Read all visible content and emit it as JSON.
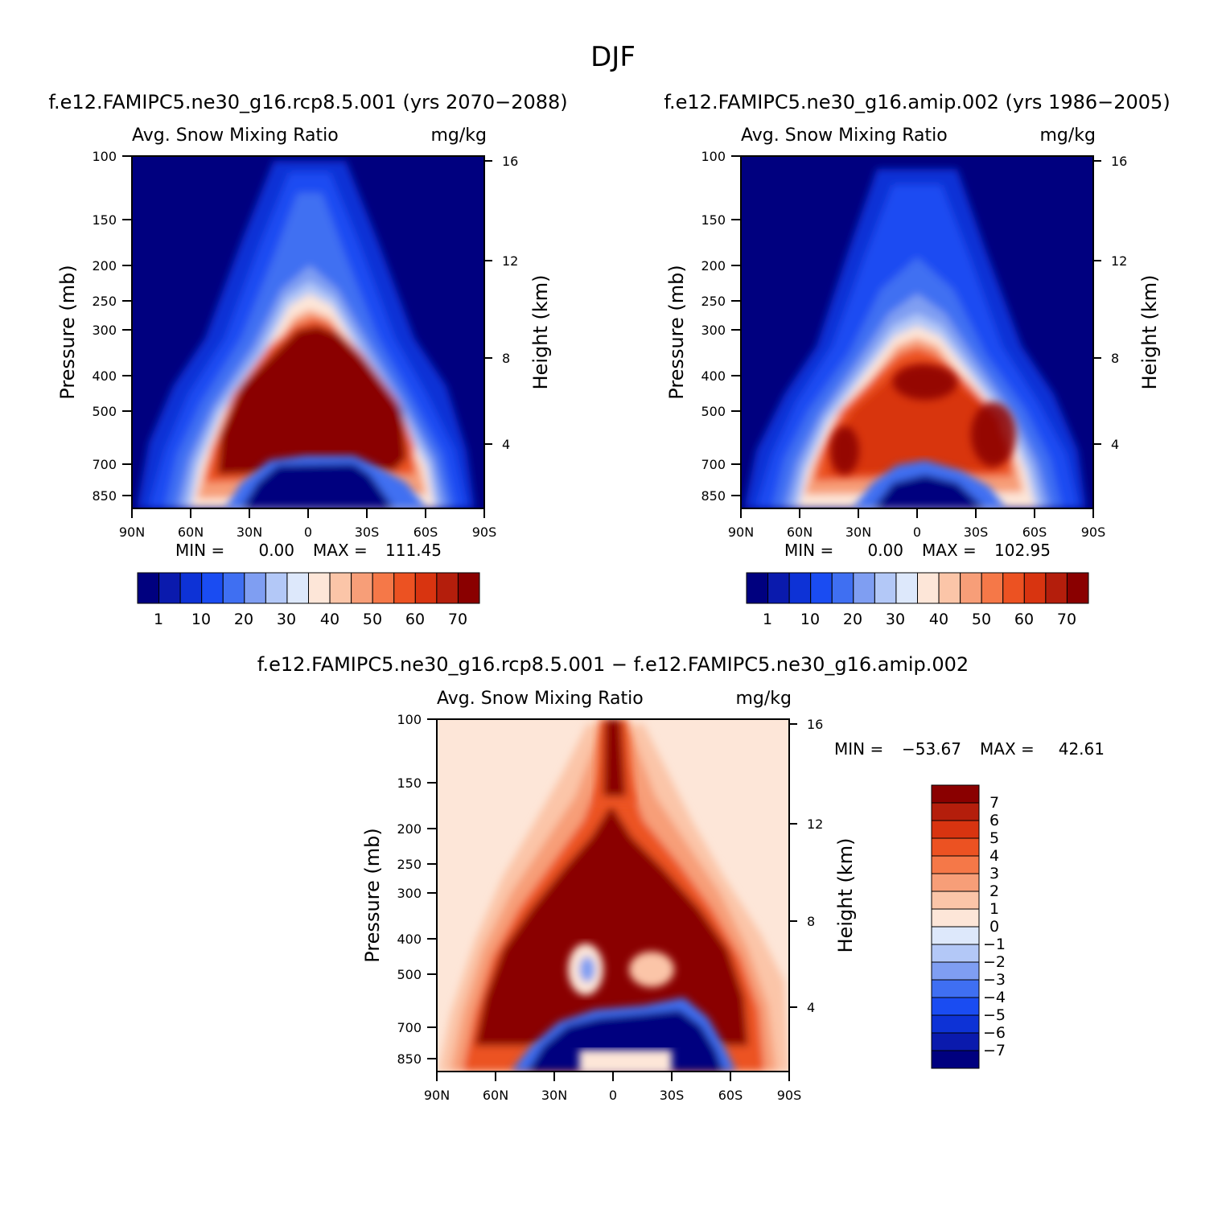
{
  "figure": {
    "season_title": "DJF"
  },
  "colors": {
    "abs_levels": [
      "#00007f",
      "#0a1aad",
      "#0d32d6",
      "#1a4cf2",
      "#3f6ff2",
      "#7f9ef2",
      "#b3c8f7",
      "#dde8fb",
      "#fde6d8",
      "#fbc5a8",
      "#f79e78",
      "#f57848",
      "#ec5222",
      "#d83410",
      "#b41e0c",
      "#8a0000"
    ],
    "diff_levels": [
      "#00007f",
      "#0a1aad",
      "#0d32d6",
      "#1a4cf2",
      "#3f6ff2",
      "#7f9ef2",
      "#b3c8f7",
      "#dde8fb",
      "#fde6d8",
      "#fbc5a8",
      "#f79e78",
      "#f57848",
      "#ec5222",
      "#d83410",
      "#b41e0c",
      "#8a0000"
    ]
  },
  "chart_data": [
    {
      "type": "heatmap",
      "case_title": "f.e12.FAMIPC5.ne30_g16.rcp8.5.001 (yrs 2070-2088)",
      "variable_title": "Avg. Snow Mixing Ratio",
      "units": "mg/kg",
      "ylabel": "Pressure (mb)",
      "ylabel_right": "Height (km)",
      "x_ticks": [
        "90N",
        "60N",
        "30N",
        "0",
        "30S",
        "60S",
        "90S"
      ],
      "y_ticks": [
        "100",
        "150",
        "200",
        "250",
        "300",
        "400",
        "500",
        "700",
        "850"
      ],
      "y_right_ticks": [
        "16",
        "12",
        "8",
        "4"
      ],
      "stats": {
        "min_label": "MIN =",
        "min": "0.00",
        "max_label": "MAX =",
        "max": "111.45"
      },
      "colorbar_labels": [
        "1",
        "10",
        "20",
        "30",
        "40",
        "50",
        "60",
        "70"
      ],
      "field": "absolute"
    },
    {
      "type": "heatmap",
      "case_title": "f.e12.FAMIPC5.ne30_g16.amip.002 (yrs 1986-2005)",
      "variable_title": "Avg. Snow Mixing Ratio",
      "units": "mg/kg",
      "ylabel": "Pressure (mb)",
      "ylabel_right": "Height (km)",
      "x_ticks": [
        "90N",
        "60N",
        "30N",
        "0",
        "30S",
        "60S",
        "90S"
      ],
      "y_ticks": [
        "100",
        "150",
        "200",
        "250",
        "300",
        "400",
        "500",
        "700",
        "850"
      ],
      "y_right_ticks": [
        "16",
        "12",
        "8",
        "4"
      ],
      "stats": {
        "min_label": "MIN =",
        "min": "0.00",
        "max_label": "MAX =",
        "max": "102.95"
      },
      "colorbar_labels": [
        "1",
        "10",
        "20",
        "30",
        "40",
        "50",
        "60",
        "70"
      ],
      "field": "absolute"
    },
    {
      "type": "heatmap",
      "case_title": "f.e12.FAMIPC5.ne30_g16.rcp8.5.001 - f.e12.FAMIPC5.ne30_g16.amip.002",
      "variable_title": "Avg. Snow Mixing Ratio",
      "units": "mg/kg",
      "ylabel": "Pressure (mb)",
      "ylabel_right": "Height (km)",
      "x_ticks": [
        "90N",
        "60N",
        "30N",
        "0",
        "30S",
        "60S",
        "90S"
      ],
      "y_ticks": [
        "100",
        "150",
        "200",
        "250",
        "300",
        "400",
        "500",
        "700",
        "850"
      ],
      "y_right_ticks": [
        "16",
        "12",
        "8",
        "4"
      ],
      "stats": {
        "min_label": "MIN =",
        "min": "-53.67",
        "max_label": "MAX =",
        "max": "42.61"
      },
      "colorbar_labels": [
        "7",
        "6",
        "5",
        "4",
        "3",
        "2",
        "1",
        "0",
        "-1",
        "-2",
        "-3",
        "-4",
        "-5",
        "-6",
        "-7"
      ],
      "field": "difference"
    }
  ]
}
